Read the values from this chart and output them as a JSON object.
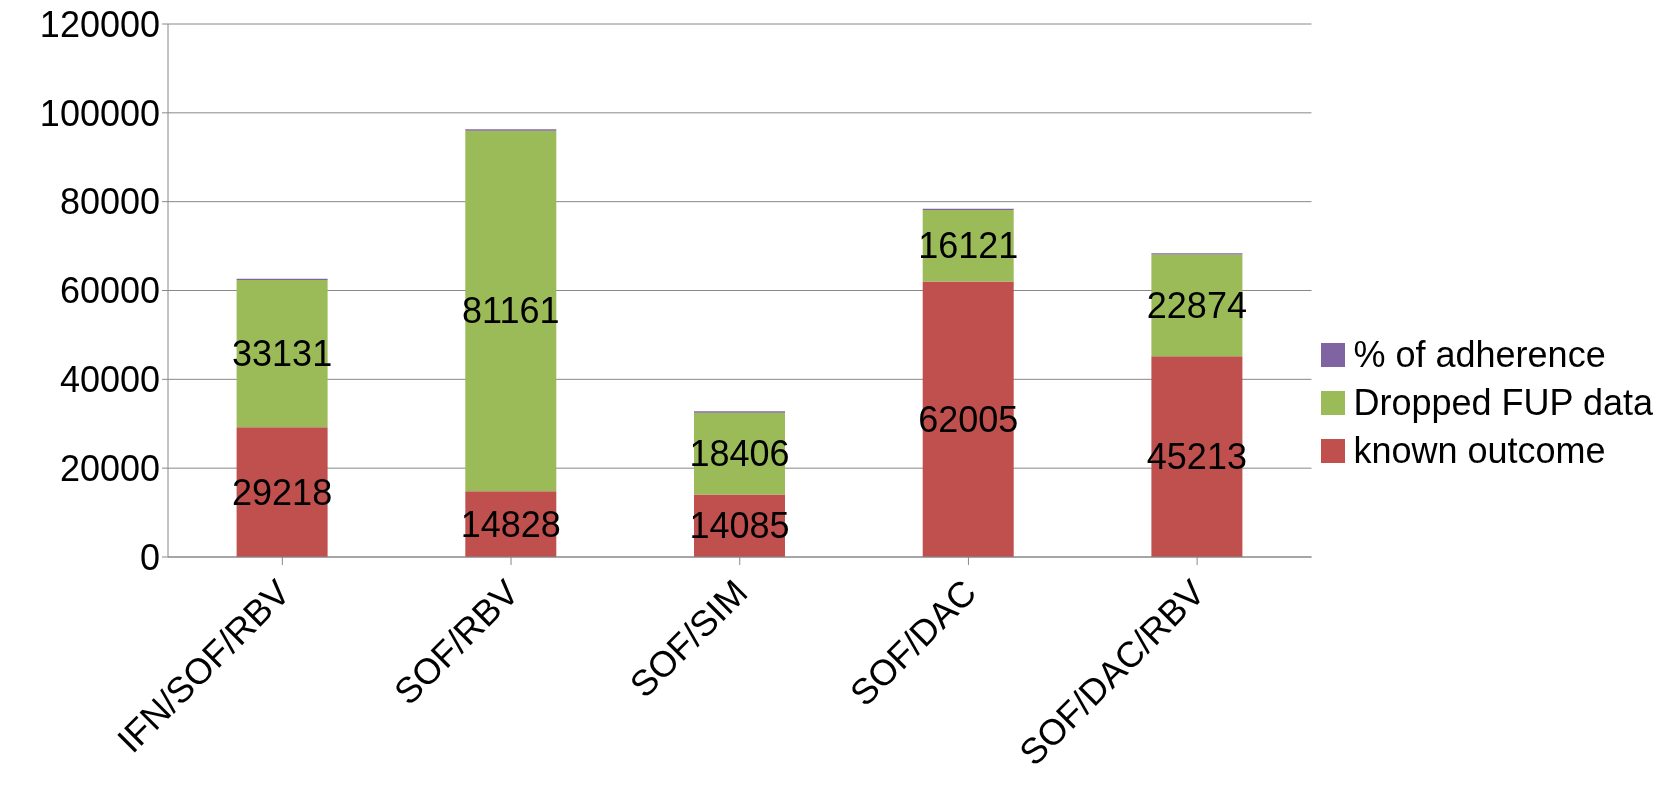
{
  "chart_data": {
    "type": "bar",
    "stacked": true,
    "categories": [
      "IFN/SOF/RBV",
      "SOF/RBV",
      "SOF/SIM",
      "SOF/DAC",
      "SOF/DAC/RBV"
    ],
    "series": [
      {
        "name": "known outcome",
        "color": "#c0504d",
        "values": [
          29218,
          14828,
          14085,
          62005,
          45213
        ],
        "value_labels": [
          "29218",
          "14828",
          "14085",
          "62005",
          "45213"
        ]
      },
      {
        "name": "Dropped FUP data",
        "color": "#9bbb59",
        "values": [
          33131,
          81161,
          18406,
          16121,
          22874
        ],
        "value_labels": [
          "33131",
          "81161",
          "18406",
          "16121",
          "22874"
        ]
      },
      {
        "name": "% of adherence",
        "color": "#8064a2",
        "values": [
          300,
          300,
          300,
          300,
          300
        ]
      }
    ],
    "ylim": [
      0,
      120000
    ],
    "yticks": [
      0,
      20000,
      40000,
      60000,
      80000,
      100000,
      120000
    ],
    "grid": "y",
    "legend": "right"
  }
}
